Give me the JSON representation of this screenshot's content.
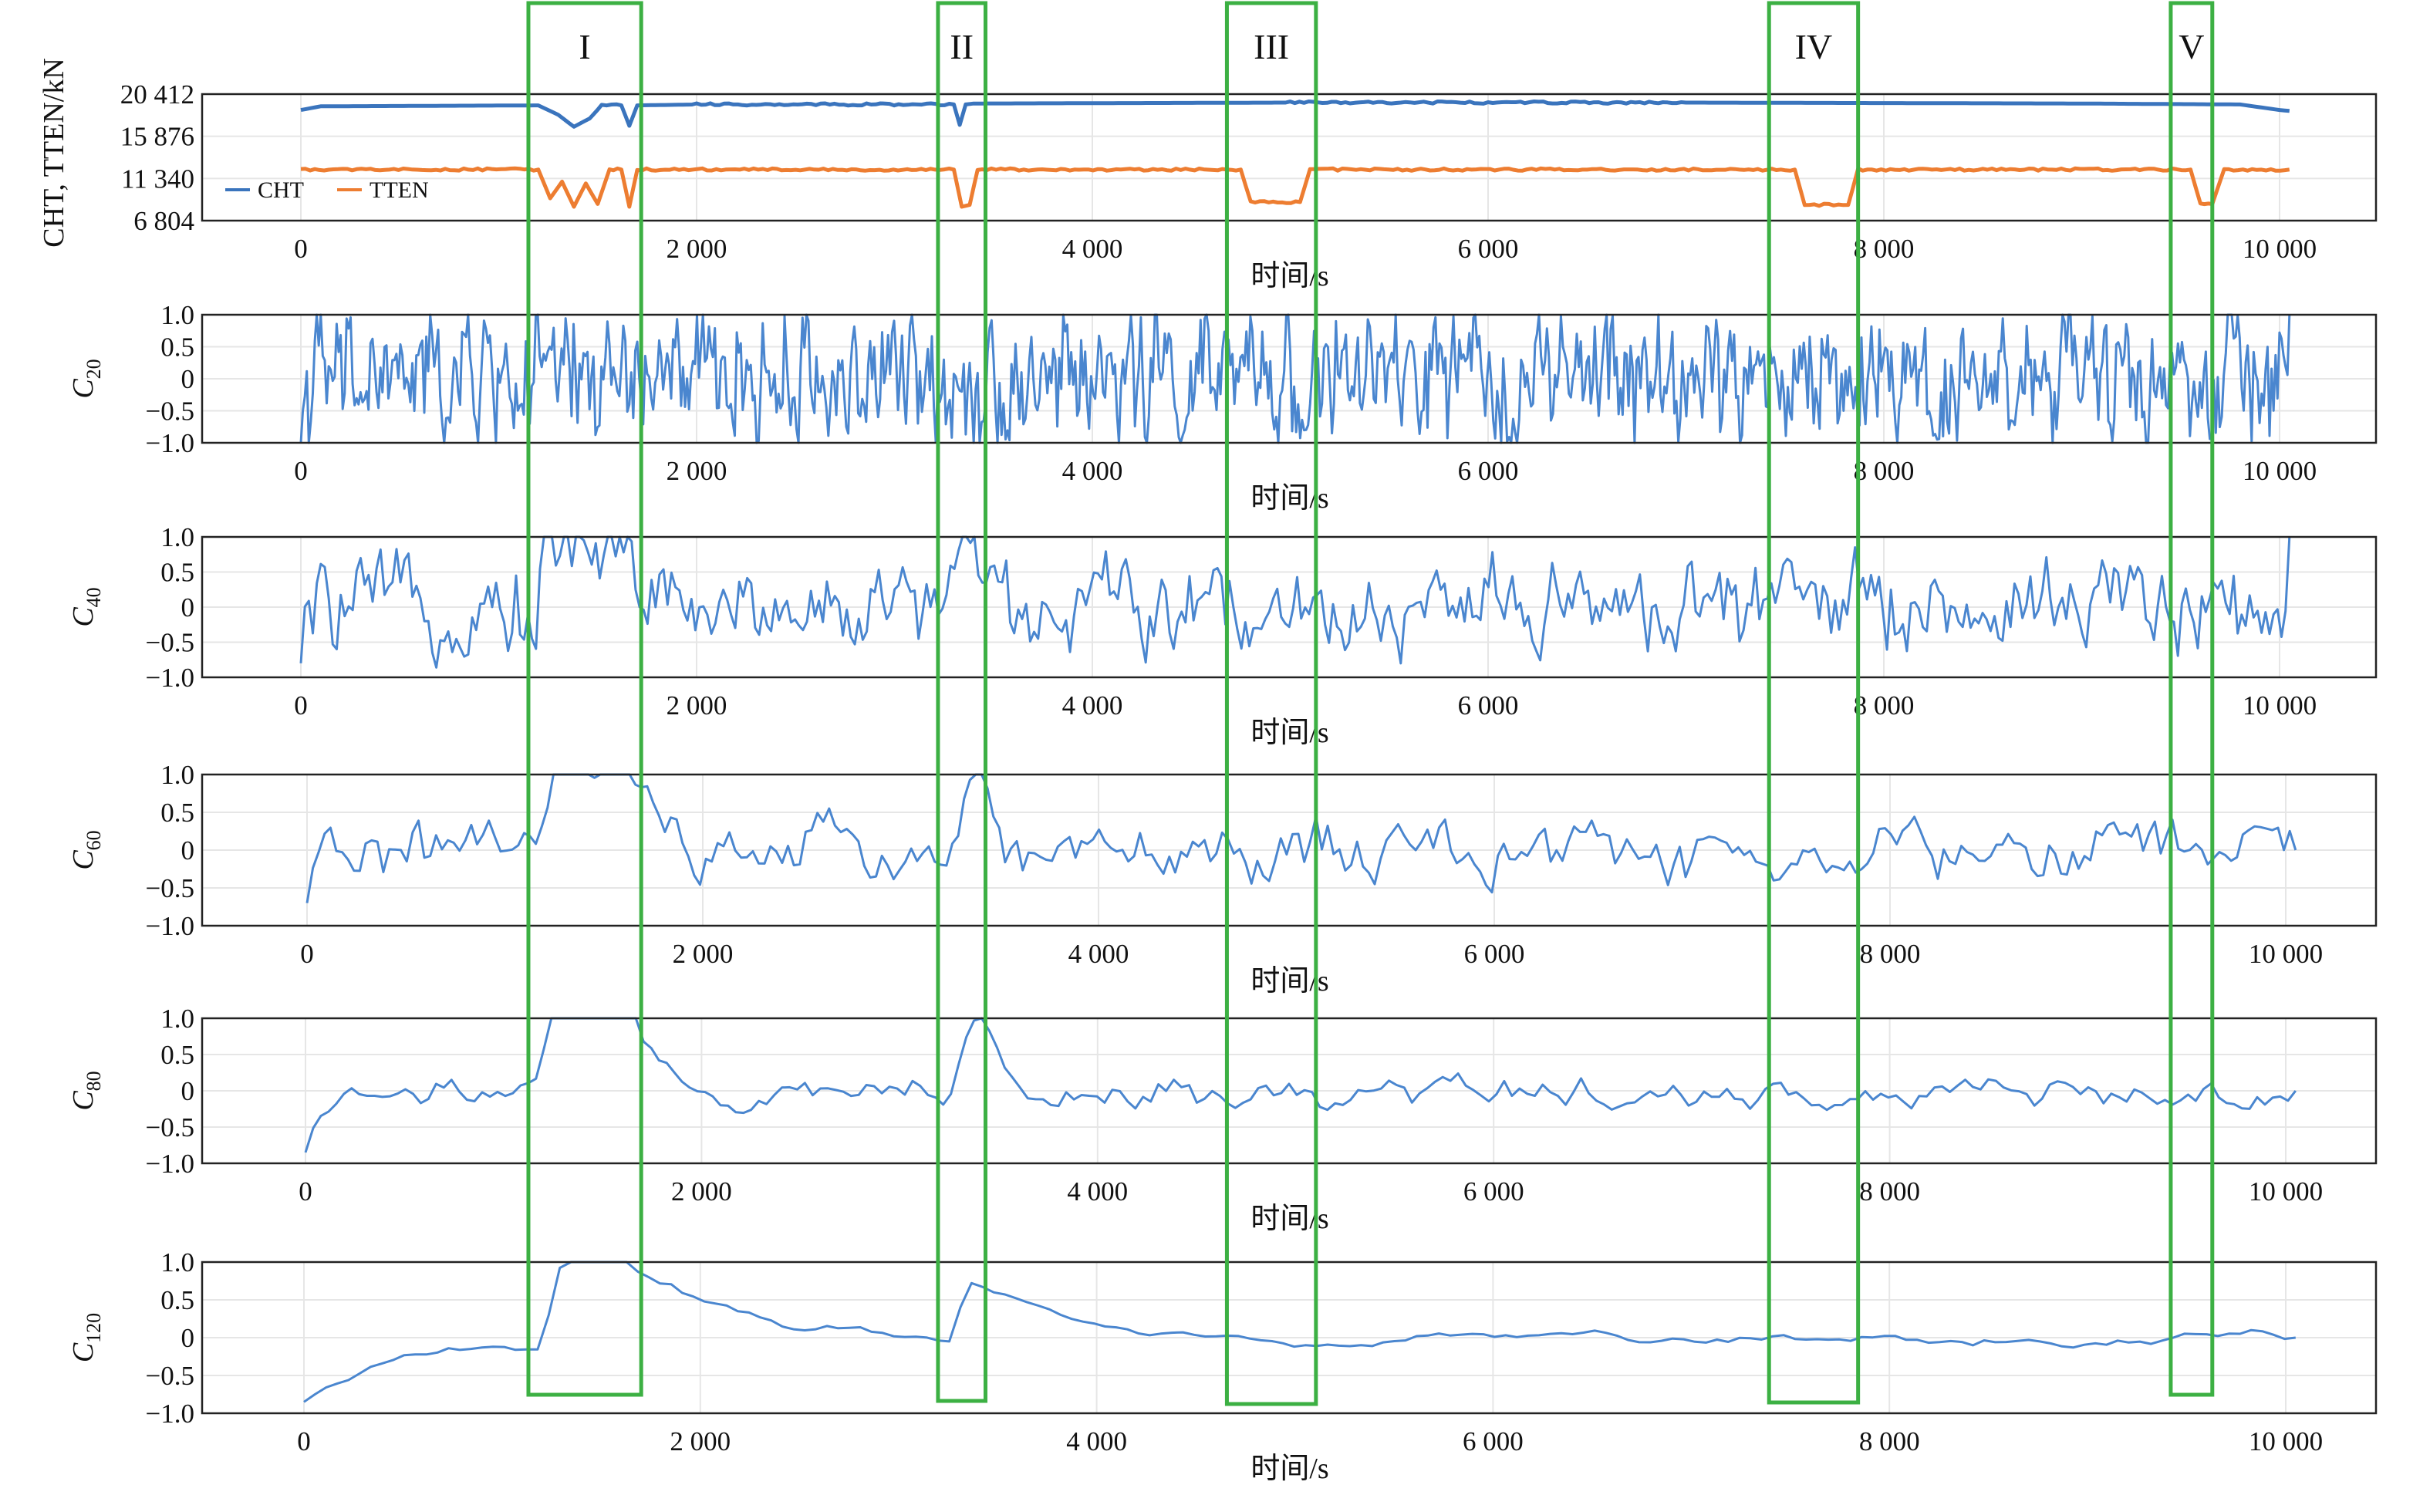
{
  "chart_data": [
    {
      "type": "line",
      "ylabel": "CHT, TTEN/kN",
      "xlabel": "时间/s",
      "xlim": [
        0,
        10500
      ],
      "ylim": [
        6804,
        20412
      ],
      "yticks": [
        6804,
        11340,
        15876,
        20412
      ],
      "ytick_labels": [
        "6 804",
        "11 340",
        "15 876",
        "20 412"
      ],
      "xticks": [
        0,
        2000,
        4000,
        6000,
        8000,
        10000
      ],
      "xtick_labels": [
        "0",
        "2 000",
        "4 000",
        "6 000",
        "8 000",
        "10 000"
      ],
      "grid": true,
      "legend_position": "bottom-left",
      "series": [
        {
          "name": "CHT",
          "color": "#3a74bd",
          "x": [
            0,
            100,
            1200,
            1300,
            1380,
            1460,
            1520,
            1620,
            1660,
            1700,
            2000,
            3300,
            3330,
            3360,
            3400,
            5000,
            7000,
            9000,
            9800,
            10000,
            10050
          ],
          "values": [
            18700,
            19100,
            19200,
            18200,
            16900,
            17800,
            19200,
            19200,
            17000,
            19200,
            19300,
            19300,
            17100,
            19300,
            19400,
            19500,
            19500,
            19400,
            19300,
            18700,
            18600
          ]
        },
        {
          "name": "TTEN",
          "color": "#ed7d31",
          "x": [
            0,
            1200,
            1260,
            1320,
            1380,
            1440,
            1500,
            1560,
            1620,
            1660,
            1700,
            3300,
            3340,
            3380,
            3420,
            4750,
            4800,
            5050,
            5100,
            7550,
            7600,
            7820,
            7870,
            9550,
            9600,
            9660,
            9720,
            10050
          ],
          "values": [
            12300,
            12300,
            9200,
            11000,
            8300,
            10800,
            8600,
            12300,
            12300,
            8300,
            12300,
            12300,
            8300,
            8500,
            12300,
            12300,
            8800,
            8800,
            12300,
            12300,
            8500,
            8500,
            12300,
            12300,
            8600,
            8600,
            12300,
            12300
          ]
        }
      ]
    },
    {
      "type": "line",
      "ylabel": "C20",
      "ylabel_main": "C",
      "ylabel_sub": "20",
      "xlabel": "时间/s",
      "xlim": [
        0,
        10500
      ],
      "ylim": [
        -1.0,
        1.0
      ],
      "yticks": [
        1.0,
        0.5,
        0,
        -0.5,
        -1.0
      ],
      "ytick_labels": [
        "1.0",
        "0.5",
        "0",
        "−0.5",
        "−1.0"
      ],
      "xticks": [
        0,
        2000,
        4000,
        6000,
        8000,
        10000
      ],
      "xtick_labels": [
        "0",
        "2 000",
        "4 000",
        "6 000",
        "8 000",
        "10 000"
      ],
      "grid": true,
      "series": [
        {
          "color": "#4a86cf",
          "x_start": 0,
          "x_end": 10050,
          "points": 1000,
          "window": 20,
          "amplitude": 0.85,
          "start": -1.0,
          "end": 1.0
        }
      ]
    },
    {
      "type": "line",
      "ylabel": "C40",
      "ylabel_main": "C",
      "ylabel_sub": "40",
      "xlabel": "时间/s",
      "xlim": [
        0,
        10500
      ],
      "ylim": [
        -1.0,
        1.0
      ],
      "yticks": [
        1.0,
        0.5,
        0,
        -0.5,
        -1.0
      ],
      "ytick_labels": [
        "1.0",
        "0.5",
        "0",
        "−0.5",
        "−1.0"
      ],
      "xticks": [
        0,
        2000,
        4000,
        6000,
        8000,
        10000
      ],
      "xtick_labels": [
        "0",
        "2 000",
        "4 000",
        "6 000",
        "8 000",
        "10 000"
      ],
      "grid": true,
      "series": [
        {
          "color": "#4a86cf",
          "x_start": 0,
          "x_end": 10050,
          "points": 500,
          "window": 40,
          "amplitude": 0.6,
          "start": -0.8,
          "end": 1.0
        }
      ]
    },
    {
      "type": "line",
      "ylabel": "C60",
      "ylabel_main": "C",
      "ylabel_sub": "60",
      "xlabel": "时间/s",
      "xlim": [
        0,
        10500
      ],
      "ylim": [
        -1.0,
        1.0
      ],
      "yticks": [
        1.0,
        0.5,
        0,
        -0.5,
        -1.0
      ],
      "ytick_labels": [
        "1.0",
        "0.5",
        "0",
        "−0.5",
        "−1.0"
      ],
      "xticks": [
        0,
        2000,
        4000,
        6000,
        8000,
        10000
      ],
      "xtick_labels": [
        "0",
        "2 000",
        "4 000",
        "6 000",
        "8 000",
        "10 000"
      ],
      "grid": true,
      "series": [
        {
          "color": "#4a86cf",
          "x_start": 0,
          "x_end": 10050,
          "points": 340,
          "window": 60,
          "amplitude": 0.42,
          "start": -0.7,
          "end": 0.0
        }
      ]
    },
    {
      "type": "line",
      "ylabel": "C80",
      "ylabel_main": "C",
      "ylabel_sub": "80",
      "xlabel": "时间/s",
      "xlim": [
        0,
        10500
      ],
      "ylim": [
        -1.0,
        1.0
      ],
      "yticks": [
        1.0,
        0.5,
        0,
        -0.5,
        -1.0
      ],
      "ytick_labels": [
        "1.0",
        "0.5",
        "0",
        "−0.5",
        "−1.0"
      ],
      "xticks": [
        0,
        2000,
        4000,
        6000,
        8000,
        10000
      ],
      "xtick_labels": [
        "0",
        "2 000",
        "4 000",
        "6 000",
        "8 000",
        "10 000"
      ],
      "grid": true,
      "series": [
        {
          "color": "#4a86cf",
          "x_start": 0,
          "x_end": 10050,
          "points": 260,
          "window": 80,
          "amplitude": 0.32,
          "start": -0.85,
          "end": 0.0
        }
      ]
    },
    {
      "type": "line",
      "ylabel": "C120",
      "ylabel_main": "C",
      "ylabel_sub": "120",
      "xlabel": "时间/s",
      "xlim": [
        0,
        10500
      ],
      "ylim": [
        -1.0,
        1.0
      ],
      "yticks": [
        1.0,
        0.5,
        0,
        -0.5,
        -1.0
      ],
      "ytick_labels": [
        "1.0",
        "0.5",
        "0",
        "−0.5",
        "−1.0"
      ],
      "xticks": [
        0,
        2000,
        4000,
        6000,
        8000,
        10000
      ],
      "xtick_labels": [
        "0",
        "2 000",
        "4 000",
        "6 000",
        "8 000",
        "10 000"
      ],
      "grid": true,
      "series": [
        {
          "color": "#4a86cf",
          "x_start": 0,
          "x_end": 10050,
          "points": 180,
          "window": 120,
          "amplitude": 0.28,
          "start": -0.85,
          "end": 0.0
        }
      ]
    }
  ],
  "regions": [
    {
      "label": "I",
      "x_start": 1150,
      "x_end": 1720,
      "color": "#3cb043"
    },
    {
      "label": "II",
      "x_start": 3220,
      "x_end": 3460,
      "color": "#3cb043"
    },
    {
      "label": "III",
      "x_start": 4680,
      "x_end": 5130,
      "color": "#3cb043"
    },
    {
      "label": "IV",
      "x_start": 7420,
      "x_end": 7870,
      "color": "#3cb043"
    },
    {
      "label": "V",
      "x_start": 9450,
      "x_end": 9660,
      "color": "#3cb043"
    }
  ]
}
